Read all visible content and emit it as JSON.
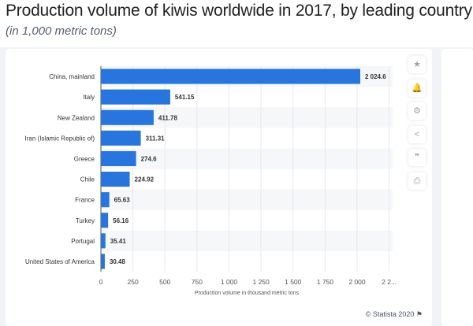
{
  "header": {
    "title": "Production volume of kiwis worldwide in 2017, by leading country",
    "subtitle": "(in 1,000 metric tons)"
  },
  "tools": [
    {
      "icon": "star-icon",
      "glyph": "★"
    },
    {
      "icon": "bell-icon",
      "glyph": "🔔"
    },
    {
      "icon": "gear-icon",
      "glyph": "⚙"
    },
    {
      "icon": "share-icon",
      "glyph": "<"
    },
    {
      "icon": "quote-icon",
      "glyph": "❞"
    },
    {
      "icon": "print-icon",
      "glyph": "⎙"
    }
  ],
  "footer": {
    "credit": "© Statista 2020",
    "flag_icon": "flag-icon"
  },
  "chart_data": {
    "type": "bar",
    "orientation": "horizontal",
    "categories": [
      "China, mainland",
      "Italy",
      "New Zealand",
      "Iran (Islamic Republic of)",
      "Greece",
      "Chile",
      "France",
      "Turkey",
      "Portugal",
      "United States of America"
    ],
    "values": [
      2024.6,
      541.15,
      411.78,
      311.31,
      274.6,
      224.92,
      65.63,
      56.16,
      35.41,
      30.48
    ],
    "value_labels": [
      "2 024.6",
      "541.15",
      "411.78",
      "311.31",
      "274.6",
      "224.92",
      "65.63",
      "56.16",
      "35.41",
      "30.48"
    ],
    "xlabel": "Production volume in thousand metric tons",
    "xticks": [
      0,
      250,
      500,
      750,
      1000,
      1250,
      1500,
      1750,
      2000,
      2250
    ],
    "xtick_labels": [
      "0",
      "250",
      "500",
      "750",
      "1 000",
      "1 250",
      "1 500",
      "1 750",
      "2 000",
      "2 2..."
    ],
    "xlim": [
      0,
      2275
    ],
    "grid": true,
    "bar_color": "#2876dd"
  }
}
